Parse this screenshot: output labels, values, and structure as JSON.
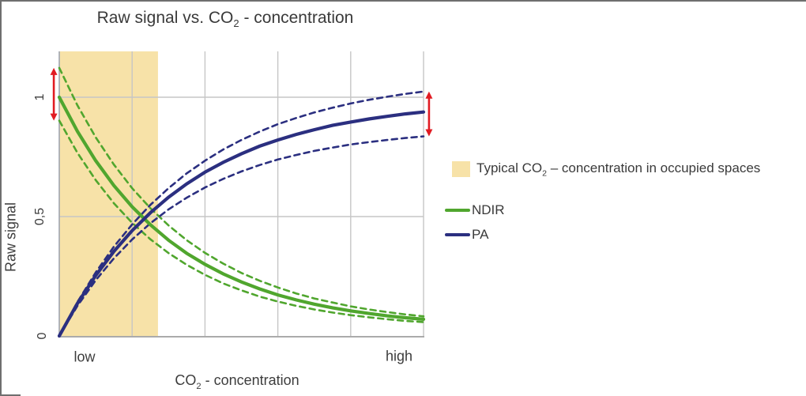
{
  "title": {
    "pre": "Raw signal vs. CO",
    "sub": "2",
    "post": " - concentration"
  },
  "y_axis": {
    "label": "Raw signal",
    "ticks": [
      {
        "label": "1",
        "value": 1.0
      },
      {
        "label": "0,5",
        "value": 0.5
      },
      {
        "label": "0",
        "value": 0.0
      }
    ]
  },
  "x_axis": {
    "label_pre": "CO",
    "label_sub": "2",
    "label_post": " - concentration",
    "tick_low": "low",
    "tick_high": "high"
  },
  "legend": {
    "band": {
      "pre": "Typical CO",
      "sub": "2",
      "post": " – concentration in occupied spaces"
    },
    "series": [
      {
        "name": "NDIR",
        "color": "#50A62E"
      },
      {
        "name": "PA",
        "color": "#2B2F80"
      }
    ]
  },
  "colors": {
    "ndir_green": "#50A62E",
    "pa_navy": "#2B2F80",
    "band_tan": "#F7E2A8",
    "arrow_red": "#E11B22",
    "gridline": "#C6C6C6",
    "y_axis_line": "#9FA3B0",
    "x_axis_line": "#ABABAB"
  },
  "chart_data": {
    "type": "line",
    "title": "Raw signal vs. CO2 - concentration",
    "xlabel": "CO2 - concentration",
    "ylabel": "Raw signal",
    "x_tick_labels": [
      "low",
      "high"
    ],
    "y_tick_labels": [
      "0",
      "0,5",
      "1"
    ],
    "xlim": [
      0,
      1
    ],
    "ylim": [
      0,
      1.19
    ],
    "grid": {
      "x_values": [
        0.2,
        0.4,
        0.6,
        0.8,
        1.0
      ],
      "y_values": [
        0.5,
        1.0
      ]
    },
    "legend_position": "right",
    "x": [
      0,
      0.05,
      0.1,
      0.15,
      0.2,
      0.25,
      0.3,
      0.35,
      0.4,
      0.45,
      0.5,
      0.55,
      0.6,
      0.65,
      0.7,
      0.75,
      0.8,
      0.85,
      0.9,
      0.95,
      1.0
    ],
    "series": [
      {
        "name": "NDIR upper bound",
        "style": "dashed",
        "color": "#50A62E",
        "values": [
          1.123,
          0.966,
          0.832,
          0.718,
          0.619,
          0.535,
          0.463,
          0.401,
          0.348,
          0.303,
          0.264,
          0.231,
          0.203,
          0.178,
          0.157,
          0.14,
          0.124,
          0.111,
          0.1,
          0.09,
          0.082
        ]
      },
      {
        "name": "NDIR lower bound",
        "style": "dashed",
        "color": "#50A62E",
        "values": [
          0.902,
          0.767,
          0.653,
          0.556,
          0.474,
          0.405,
          0.347,
          0.298,
          0.256,
          0.22,
          0.191,
          0.165,
          0.144,
          0.126,
          0.111,
          0.098,
          0.087,
          0.078,
          0.07,
          0.063,
          0.058
        ]
      },
      {
        "name": "PA upper bound",
        "style": "dashed",
        "color": "#2B2F80",
        "values": [
          0.0,
          0.142,
          0.266,
          0.374,
          0.467,
          0.549,
          0.619,
          0.681,
          0.734,
          0.781,
          0.821,
          0.856,
          0.887,
          0.913,
          0.936,
          0.956,
          0.974,
          0.989,
          1.002,
          1.014,
          1.024
        ]
      },
      {
        "name": "PA lower bound",
        "style": "dashed",
        "color": "#2B2F80",
        "values": [
          0.0,
          0.126,
          0.233,
          0.325,
          0.404,
          0.472,
          0.53,
          0.579,
          0.622,
          0.658,
          0.689,
          0.716,
          0.739,
          0.758,
          0.775,
          0.789,
          0.802,
          0.812,
          0.821,
          0.829,
          0.836
        ]
      },
      {
        "name": "NDIR",
        "style": "solid",
        "color": "#50A62E",
        "values": [
          1.0,
          0.857,
          0.734,
          0.63,
          0.541,
          0.466,
          0.401,
          0.346,
          0.3,
          0.26,
          0.226,
          0.197,
          0.172,
          0.151,
          0.133,
          0.118,
          0.105,
          0.094,
          0.084,
          0.076,
          0.07
        ]
      },
      {
        "name": "PA",
        "style": "solid",
        "color": "#2B2F80",
        "values": [
          0.0,
          0.136,
          0.253,
          0.354,
          0.441,
          0.516,
          0.581,
          0.637,
          0.686,
          0.727,
          0.763,
          0.795,
          0.821,
          0.844,
          0.864,
          0.882,
          0.896,
          0.909,
          0.92,
          0.93,
          0.938
        ]
      }
    ],
    "shaded_region": {
      "label": "Typical CO2 – concentration in occupied spaces",
      "x_range": [
        0,
        0.271
      ],
      "color": "#F7E2A8"
    },
    "annotations": [
      {
        "type": "double-arrow",
        "color": "#E11B22",
        "x": -0.015,
        "y_range": [
          0.902,
          1.123
        ],
        "meaning": "NDIR raw-signal spread at low CO2 concentration"
      },
      {
        "type": "double-arrow",
        "color": "#E11B22",
        "x": 1.015,
        "y_range": [
          0.836,
          1.024
        ],
        "meaning": "PA raw-signal spread at high CO2 concentration"
      }
    ]
  }
}
